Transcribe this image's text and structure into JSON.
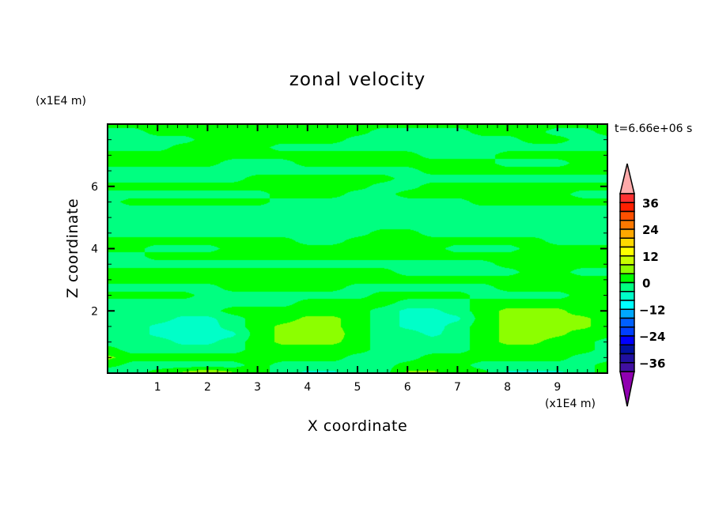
{
  "chart_data": {
    "type": "heatmap",
    "subtype": "filled-contour",
    "title": "zonal velocity",
    "xlabel": "X coordinate",
    "ylabel": "Z coordinate",
    "x_unit_label": "(x1E4 m)",
    "z_unit_label": "(x1E4 m)",
    "time_label": "t=6.66e+06 s",
    "xlim": [
      0,
      10
    ],
    "ylim": [
      0,
      8
    ],
    "x_ticks": [
      "1",
      "2",
      "3",
      "4",
      "5",
      "6",
      "7",
      "8",
      "9"
    ],
    "y_ticks": [
      "2",
      "4",
      "6"
    ],
    "colorbar": {
      "levels_min": -40,
      "levels_max": 40,
      "level_step": 4,
      "tick_labels": [
        "36",
        "24",
        "12",
        "0",
        "-12",
        "-24",
        "-36"
      ],
      "tick_values": [
        36,
        24,
        12,
        0,
        -12,
        -24,
        -36
      ],
      "colors_high_to_low": [
        "#ff3030",
        "#ff2000",
        "#ff5000",
        "#ff7800",
        "#ffa800",
        "#ffd800",
        "#ffff00",
        "#c8ff00",
        "#8cff00",
        "#00ff00",
        "#00ff80",
        "#00ffc8",
        "#00ffff",
        "#00a8ff",
        "#0060ff",
        "#0040ff",
        "#0000ff",
        "#0010a0",
        "#2010a0",
        "#4010a0"
      ],
      "over_color": "#ffaaaa",
      "under_color": "#9000b0"
    },
    "grid_x": [
      0,
      0.5,
      1,
      1.5,
      2,
      2.5,
      3,
      3.5,
      4,
      4.5,
      5,
      5.5,
      6,
      6.5,
      7,
      7.5,
      8,
      8.5,
      9,
      9.5,
      10
    ],
    "grid_z_top_to_bottom": [
      8,
      7.75,
      7.5,
      7.25,
      7,
      6.75,
      6.5,
      6.25,
      6,
      5.75,
      5.5,
      5.25,
      5,
      4.75,
      4.5,
      4.25,
      4,
      3.75,
      3.5,
      3.25,
      3,
      2.75,
      2.5,
      2.25,
      2,
      1.75,
      1.5,
      1.25,
      1,
      0.75,
      0.5,
      0.25,
      0
    ],
    "values": [
      [
        2,
        2,
        2,
        2,
        2,
        2,
        2,
        2,
        2,
        2,
        2,
        2,
        2,
        2,
        2,
        2,
        2,
        2,
        2,
        2,
        2
      ],
      [
        -2,
        -2,
        2,
        2,
        2,
        2,
        2,
        2,
        2,
        2,
        2,
        -2,
        -2,
        -2,
        -2,
        2,
        2,
        2,
        -2,
        -2,
        2
      ],
      [
        -2,
        -2,
        -2,
        -2,
        2,
        2,
        2,
        2,
        2,
        2,
        -2,
        -2,
        -2,
        -2,
        -2,
        -2,
        -2,
        2,
        2,
        -2,
        -2
      ],
      [
        -2,
        -2,
        -2,
        2,
        2,
        2,
        2,
        -2,
        -2,
        -2,
        -2,
        -2,
        -2,
        -2,
        -2,
        -2,
        -2,
        -2,
        -2,
        -2,
        -2
      ],
      [
        2,
        2,
        2,
        2,
        2,
        2,
        2,
        2,
        2,
        2,
        2,
        2,
        2,
        -2,
        -2,
        -2,
        2,
        2,
        2,
        2,
        2
      ],
      [
        2,
        2,
        2,
        2,
        2,
        -2,
        -2,
        -2,
        2,
        2,
        2,
        2,
        2,
        2,
        2,
        2,
        -2,
        -2,
        -2,
        2,
        2
      ],
      [
        -2,
        -2,
        -2,
        -2,
        -2,
        -2,
        -2,
        -2,
        -2,
        -2,
        -2,
        -2,
        -2,
        2,
        2,
        2,
        2,
        2,
        2,
        2,
        2
      ],
      [
        -2,
        -2,
        -2,
        -2,
        -2,
        -2,
        2,
        2,
        2,
        2,
        2,
        2,
        -2,
        -2,
        -2,
        -2,
        -2,
        -2,
        -2,
        -2,
        -2
      ],
      [
        2,
        2,
        2,
        2,
        2,
        2,
        2,
        2,
        2,
        2,
        2,
        -2,
        -2,
        2,
        2,
        2,
        2,
        2,
        2,
        2,
        2
      ],
      [
        -2,
        -2,
        -2,
        -2,
        -2,
        -2,
        -2,
        2,
        2,
        2,
        -2,
        -2,
        2,
        2,
        2,
        2,
        2,
        2,
        2,
        -2,
        -2
      ],
      [
        -2,
        2,
        2,
        2,
        2,
        2,
        2,
        -2,
        -2,
        -2,
        -2,
        -2,
        -2,
        -2,
        -2,
        2,
        2,
        2,
        2,
        2,
        2
      ],
      [
        -2,
        -2,
        -2,
        -2,
        -2,
        -2,
        -2,
        -2,
        -2,
        -2,
        -2,
        -2,
        -2,
        -2,
        -2,
        -2,
        -2,
        -2,
        -2,
        -2,
        -2
      ],
      [
        -2,
        -2,
        -2,
        -2,
        -2,
        -2,
        -2,
        -2,
        -2,
        -2,
        -2,
        -2,
        -2,
        -2,
        -2,
        -2,
        -2,
        -2,
        -2,
        -2,
        -2
      ],
      [
        -2,
        -2,
        -2,
        -2,
        -2,
        -2,
        -2,
        -2,
        -2,
        -2,
        -2,
        -2,
        -2,
        -2,
        -2,
        -2,
        -2,
        -2,
        -2,
        -2,
        -2
      ],
      [
        -2,
        -2,
        -2,
        -2,
        -2,
        -2,
        -2,
        -2,
        -2,
        -2,
        -2,
        2,
        2,
        -2,
        -2,
        -2,
        -2,
        -2,
        -2,
        -2,
        -2
      ],
      [
        2,
        2,
        2,
        2,
        2,
        2,
        2,
        2,
        -2,
        -2,
        2,
        2,
        2,
        2,
        2,
        2,
        2,
        2,
        -2,
        -2,
        -2
      ],
      [
        2,
        2,
        -2,
        -2,
        -2,
        2,
        2,
        2,
        2,
        2,
        2,
        2,
        2,
        2,
        -2,
        -2,
        -2,
        2,
        2,
        2,
        2
      ],
      [
        -2,
        -2,
        2,
        2,
        2,
        2,
        2,
        2,
        2,
        2,
        2,
        2,
        2,
        2,
        2,
        2,
        2,
        2,
        2,
        2,
        2
      ],
      [
        -2,
        -2,
        -2,
        -2,
        -2,
        -2,
        -2,
        -2,
        -2,
        -2,
        -2,
        -2,
        -2,
        -2,
        -2,
        -2,
        2,
        2,
        2,
        2,
        2
      ],
      [
        2,
        2,
        2,
        2,
        2,
        2,
        2,
        2,
        2,
        2,
        2,
        2,
        -2,
        -2,
        -2,
        -2,
        -2,
        2,
        2,
        -2,
        -2
      ],
      [
        2,
        2,
        2,
        2,
        2,
        2,
        2,
        2,
        2,
        2,
        2,
        2,
        2,
        2,
        2,
        2,
        2,
        2,
        2,
        2,
        2
      ],
      [
        -2,
        -2,
        -2,
        -2,
        -2,
        2,
        2,
        2,
        2,
        2,
        -2,
        -2,
        -2,
        -2,
        -2,
        -2,
        2,
        2,
        2,
        2,
        2
      ],
      [
        2,
        2,
        2,
        2,
        -2,
        -2,
        -2,
        -2,
        -2,
        -2,
        -2,
        2,
        2,
        2,
        2,
        -2,
        -2,
        -2,
        -2,
        2,
        2
      ],
      [
        -2,
        -2,
        -2,
        -2,
        -2,
        -2,
        -2,
        -2,
        2,
        2,
        2,
        2,
        -2,
        -2,
        -2,
        2,
        2,
        2,
        2,
        2,
        2
      ],
      [
        -2,
        -2,
        -2,
        -2,
        -2,
        2,
        2,
        2,
        2,
        2,
        2,
        -2,
        -5,
        -5,
        -2,
        2,
        5,
        5,
        5,
        2,
        2
      ],
      [
        -2,
        -2,
        -2,
        -5,
        -5,
        -2,
        2,
        2,
        5,
        5,
        2,
        -2,
        -5,
        -6,
        -5,
        2,
        5,
        6,
        5,
        5,
        2
      ],
      [
        -2,
        -2,
        -5,
        -6,
        -6,
        -2,
        2,
        5,
        6,
        5,
        2,
        -2,
        -5,
        -6,
        -2,
        2,
        5,
        6,
        5,
        5,
        2
      ],
      [
        -2,
        -2,
        -5,
        -6,
        -6,
        -5,
        2,
        5,
        6,
        6,
        2,
        -2,
        -2,
        -5,
        -2,
        2,
        5,
        6,
        5,
        2,
        2
      ],
      [
        -2,
        -2,
        -2,
        -5,
        -5,
        -2,
        2,
        5,
        5,
        5,
        2,
        -2,
        -2,
        -2,
        -2,
        2,
        5,
        5,
        2,
        2,
        -2
      ],
      [
        2,
        -2,
        -2,
        -2,
        -2,
        -2,
        2,
        2,
        2,
        2,
        2,
        -2,
        -2,
        -2,
        -2,
        2,
        2,
        2,
        2,
        2,
        -2
      ],
      [
        5,
        2,
        2,
        2,
        2,
        2,
        2,
        2,
        2,
        2,
        -2,
        -2,
        -2,
        2,
        2,
        2,
        2,
        2,
        2,
        -2,
        -2
      ],
      [
        2,
        -2,
        -2,
        -2,
        -2,
        -2,
        2,
        -2,
        -2,
        -2,
        -2,
        -2,
        2,
        2,
        2,
        -2,
        -2,
        -2,
        -2,
        -2,
        2
      ],
      [
        -5,
        -2,
        2,
        5,
        9,
        5,
        2,
        -2,
        -5,
        -5,
        -2,
        -2,
        5,
        5,
        2,
        2,
        -5,
        -5,
        -5,
        -2,
        2
      ]
    ]
  }
}
